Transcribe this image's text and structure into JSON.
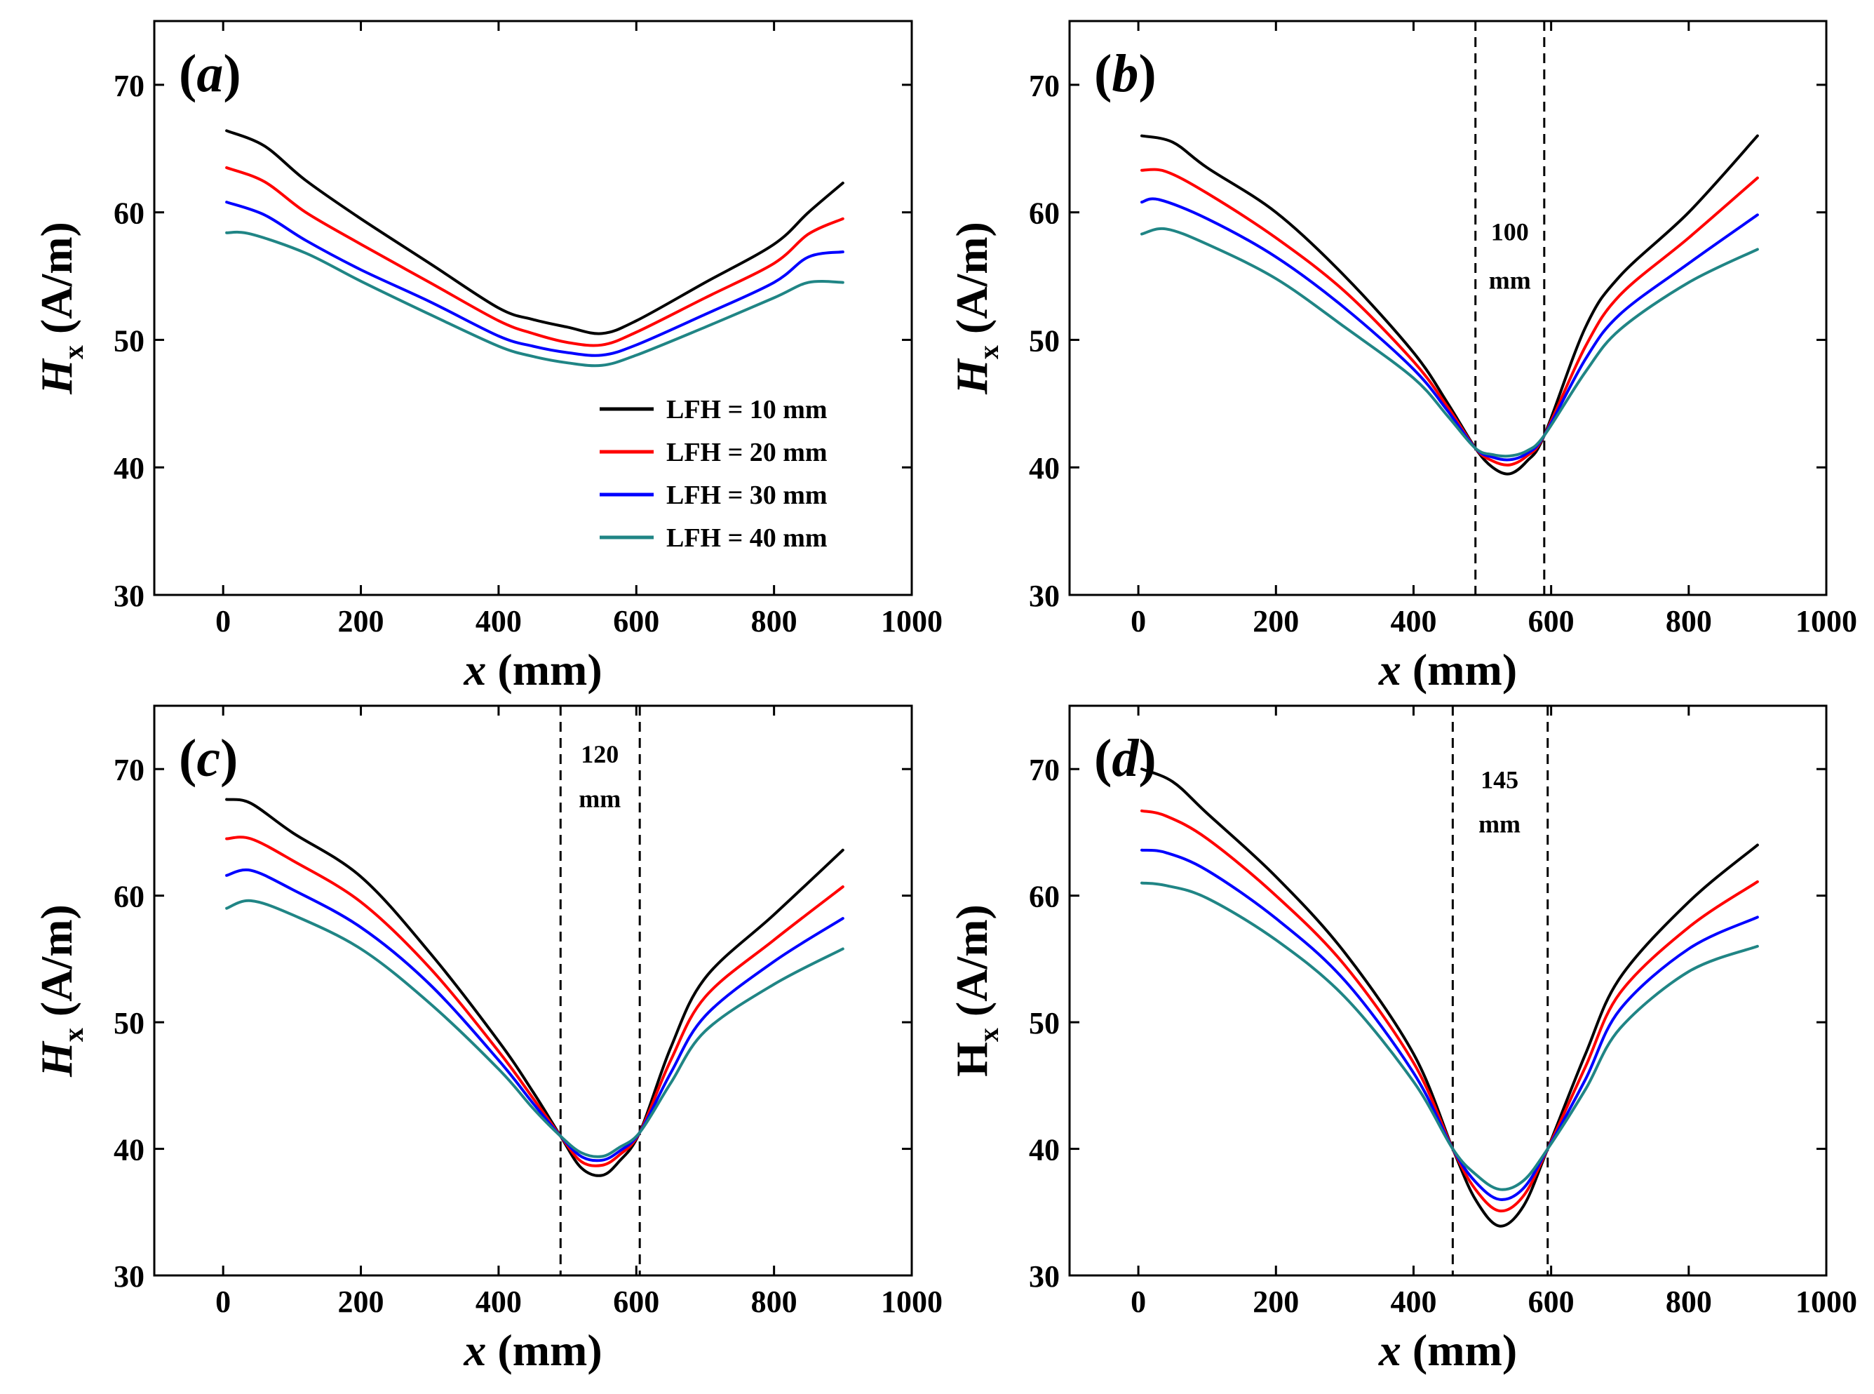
{
  "colors": {
    "black": "#000000",
    "red": "#ff0000",
    "blue": "#0000ff",
    "teal": "#208585"
  },
  "legend": [
    "LFH = 10 mm",
    "LFH = 20 mm",
    "LFH = 30 mm",
    "LFH = 40 mm"
  ],
  "chart_data": [
    {
      "panel": "a",
      "panel_label": {
        "open": "(",
        "letter": "a",
        "close": ")"
      },
      "type": "line",
      "xlabel": {
        "var": "x",
        "unit": " (mm)"
      },
      "ylabel": {
        "var": "H",
        "sub": "x",
        "unit": " (A/m)"
      },
      "xlim": [
        -100,
        1000
      ],
      "ylim": [
        30,
        75
      ],
      "xticks": [
        0,
        200,
        400,
        600,
        800,
        1000
      ],
      "yticks": [
        30,
        40,
        50,
        60,
        70
      ],
      "vlines": [],
      "annotation": null,
      "series": [
        {
          "name": "LFH = 10 mm",
          "x": [
            5,
            60,
            120,
            200,
            300,
            400,
            450,
            500,
            550,
            600,
            700,
            800,
            850,
            900
          ],
          "y": [
            66.4,
            65.2,
            62.5,
            59.5,
            56.0,
            52.5,
            51.6,
            51.0,
            50.5,
            51.5,
            54.5,
            57.5,
            60.0,
            62.3
          ]
        },
        {
          "name": "LFH = 20 mm",
          "x": [
            5,
            60,
            120,
            200,
            300,
            400,
            450,
            500,
            550,
            600,
            700,
            800,
            850,
            900
          ],
          "y": [
            63.5,
            62.4,
            60.0,
            57.5,
            54.5,
            51.5,
            50.5,
            49.8,
            49.6,
            50.6,
            53.3,
            56.0,
            58.3,
            59.5
          ]
        },
        {
          "name": "LFH = 30 mm",
          "x": [
            5,
            60,
            120,
            200,
            300,
            400,
            450,
            500,
            550,
            600,
            700,
            800,
            850,
            900
          ],
          "y": [
            60.8,
            59.8,
            57.8,
            55.5,
            53.0,
            50.3,
            49.5,
            49.0,
            48.8,
            49.6,
            52.0,
            54.5,
            56.5,
            56.9
          ]
        },
        {
          "name": "LFH = 40 mm",
          "x": [
            5,
            40,
            120,
            200,
            300,
            400,
            450,
            500,
            550,
            600,
            700,
            800,
            850,
            900
          ],
          "y": [
            58.4,
            58.3,
            56.8,
            54.6,
            52.0,
            49.5,
            48.7,
            48.2,
            48.0,
            48.8,
            51.0,
            53.3,
            54.5,
            54.5
          ]
        }
      ]
    },
    {
      "panel": "b",
      "panel_label": {
        "open": "(",
        "letter": "b",
        "close": ")"
      },
      "type": "line",
      "xlabel": {
        "var": "x",
        "unit": " (mm)"
      },
      "ylabel": {
        "var": "H",
        "sub": "x",
        "unit": " (A/m)"
      },
      "xlim": [
        -100,
        1000
      ],
      "ylim": [
        30,
        75
      ],
      "xticks": [
        0,
        200,
        400,
        600,
        800,
        1000
      ],
      "yticks": [
        30,
        40,
        50,
        60,
        70
      ],
      "vlines": [
        490,
        590
      ],
      "annotation": {
        "x": 540,
        "y1": 57.8,
        "y2": 54.0,
        "lines": [
          "100",
          "mm"
        ]
      },
      "series": [
        {
          "name": "LFH = 10 mm",
          "x": [
            5,
            50,
            100,
            200,
            300,
            400,
            450,
            490,
            515,
            540,
            565,
            590,
            650,
            700,
            800,
            900
          ],
          "y": [
            66.0,
            65.5,
            63.5,
            60.0,
            55.0,
            49.0,
            45.0,
            41.5,
            40.0,
            39.5,
            40.5,
            42.5,
            51.0,
            55.0,
            60.0,
            66.0
          ]
        },
        {
          "name": "LFH = 20 mm",
          "x": [
            5,
            40,
            100,
            200,
            300,
            400,
            450,
            490,
            515,
            540,
            565,
            590,
            650,
            700,
            800,
            900
          ],
          "y": [
            63.3,
            63.2,
            61.5,
            58.0,
            53.8,
            48.3,
            44.7,
            41.5,
            40.5,
            40.2,
            40.9,
            42.5,
            49.5,
            53.5,
            58.0,
            62.7
          ]
        },
        {
          "name": "LFH = 30 mm",
          "x": [
            5,
            30,
            100,
            200,
            300,
            400,
            450,
            490,
            515,
            540,
            565,
            590,
            650,
            700,
            800,
            900
          ],
          "y": [
            60.8,
            61.0,
            59.5,
            56.5,
            52.5,
            47.7,
            44.4,
            41.5,
            40.8,
            40.6,
            41.1,
            42.5,
            48.5,
            52.0,
            56.0,
            59.8
          ]
        },
        {
          "name": "LFH = 40 mm",
          "x": [
            5,
            40,
            100,
            200,
            300,
            400,
            450,
            490,
            515,
            540,
            565,
            590,
            650,
            700,
            800,
            900
          ],
          "y": [
            58.3,
            58.7,
            57.5,
            54.8,
            51.0,
            47.0,
            44.0,
            41.5,
            41.0,
            40.9,
            41.3,
            42.5,
            47.5,
            50.8,
            54.5,
            57.1
          ]
        }
      ]
    },
    {
      "panel": "c",
      "panel_label": {
        "open": "(",
        "letter": "c",
        "close": ")"
      },
      "type": "line",
      "xlabel": {
        "var": "x",
        "unit": " (mm)"
      },
      "ylabel": {
        "var": "H",
        "sub": "x",
        "unit": " (A/m)"
      },
      "xlim": [
        -100,
        1000
      ],
      "ylim": [
        30,
        75
      ],
      "xticks": [
        0,
        200,
        400,
        600,
        800,
        1000
      ],
      "yticks": [
        30,
        40,
        50,
        60,
        70
      ],
      "vlines": [
        490,
        605
      ],
      "annotation": {
        "x": 547,
        "y1": 70.5,
        "y2": 67.0,
        "lines": [
          "120",
          "mm"
        ]
      },
      "series": [
        {
          "name": "LFH = 10 mm",
          "x": [
            5,
            40,
            100,
            200,
            300,
            400,
            450,
            490,
            520,
            550,
            575,
            605,
            650,
            700,
            800,
            900
          ],
          "y": [
            67.6,
            67.3,
            65.0,
            61.5,
            55.5,
            48.5,
            44.5,
            41.0,
            38.5,
            37.9,
            39.0,
            41.3,
            48.0,
            53.5,
            58.5,
            63.6
          ]
        },
        {
          "name": "LFH = 20 mm",
          "x": [
            5,
            40,
            100,
            200,
            300,
            400,
            450,
            490,
            520,
            550,
            575,
            605,
            650,
            700,
            800,
            900
          ],
          "y": [
            64.5,
            64.5,
            62.8,
            59.5,
            54.3,
            47.7,
            44.0,
            41.0,
            39.0,
            38.7,
            39.5,
            41.3,
            47.0,
            52.0,
            56.5,
            60.7
          ]
        },
        {
          "name": "LFH = 30 mm",
          "x": [
            5,
            40,
            100,
            200,
            300,
            400,
            450,
            490,
            520,
            550,
            575,
            605,
            650,
            700,
            800,
            900
          ],
          "y": [
            61.6,
            62.0,
            60.5,
            57.5,
            53.0,
            47.0,
            43.6,
            41.0,
            39.4,
            39.1,
            39.8,
            41.3,
            46.0,
            50.5,
            54.8,
            58.2
          ]
        },
        {
          "name": "LFH = 40 mm",
          "x": [
            5,
            40,
            100,
            200,
            300,
            400,
            450,
            490,
            520,
            550,
            575,
            605,
            650,
            700,
            800,
            900
          ],
          "y": [
            59.0,
            59.6,
            58.5,
            55.8,
            51.5,
            46.3,
            43.2,
            41.0,
            39.7,
            39.4,
            40.1,
            41.3,
            45.2,
            49.3,
            53.0,
            55.8
          ]
        }
      ]
    },
    {
      "panel": "d",
      "panel_label": {
        "open": "(",
        "letter": "d",
        "close": ")"
      },
      "type": "line",
      "xlabel": {
        "var": "x",
        "unit": " (mm)"
      },
      "ylabel": {
        "var": "H",
        "sub": "x",
        "unit": " (A/m)"
      },
      "xlim": [
        -100,
        1000
      ],
      "ylim": [
        30,
        75
      ],
      "xticks": [
        0,
        200,
        400,
        600,
        800,
        1000
      ],
      "yticks": [
        30,
        40,
        50,
        60,
        70
      ],
      "vlines": [
        457,
        595
      ],
      "annotation": {
        "x": 525,
        "y1": 68.5,
        "y2": 65.0,
        "lines": [
          "145",
          "mm"
        ]
      },
      "series": [
        {
          "name": "LFH = 10 mm",
          "x": [
            5,
            50,
            100,
            200,
            300,
            400,
            457,
            490,
            525,
            560,
            595,
            650,
            700,
            800,
            900
          ],
          "y": [
            70.0,
            69.0,
            66.5,
            61.5,
            55.5,
            47.5,
            40.0,
            36.0,
            33.9,
            35.5,
            40.0,
            47.5,
            53.5,
            59.5,
            64.0
          ]
        },
        {
          "name": "LFH = 20 mm",
          "x": [
            5,
            40,
            100,
            200,
            300,
            400,
            457,
            490,
            525,
            560,
            595,
            650,
            700,
            800,
            900
          ],
          "y": [
            66.7,
            66.3,
            64.5,
            60.0,
            54.5,
            46.8,
            40.0,
            36.8,
            35.1,
            36.3,
            40.0,
            46.5,
            52.3,
            57.5,
            61.1
          ]
        },
        {
          "name": "LFH = 30 mm",
          "x": [
            5,
            40,
            100,
            200,
            300,
            400,
            457,
            490,
            525,
            560,
            595,
            650,
            700,
            800,
            900
          ],
          "y": [
            63.6,
            63.4,
            62.0,
            58.2,
            53.3,
            46.0,
            40.0,
            37.4,
            36.0,
            36.9,
            40.0,
            45.5,
            51.0,
            55.8,
            58.3
          ]
        },
        {
          "name": "LFH = 40 mm",
          "x": [
            5,
            40,
            100,
            200,
            300,
            400,
            457,
            490,
            525,
            560,
            595,
            650,
            700,
            800,
            900
          ],
          "y": [
            61.0,
            60.8,
            59.8,
            56.5,
            52.0,
            45.3,
            40.0,
            38.0,
            36.8,
            37.5,
            40.0,
            44.7,
            49.5,
            54.0,
            56.0
          ]
        }
      ]
    }
  ]
}
